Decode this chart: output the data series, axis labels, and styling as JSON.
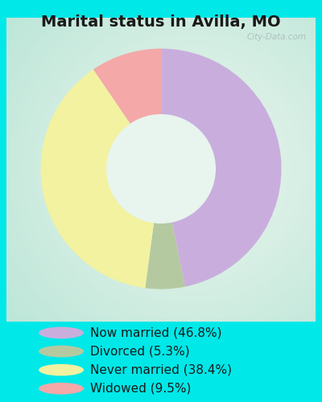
{
  "title": "Marital status in Avilla, MO",
  "slices": [
    46.8,
    5.3,
    38.4,
    9.5
  ],
  "colors": [
    "#c9aedd",
    "#b5c9a0",
    "#f2f2a0",
    "#f4a8a8"
  ],
  "labels": [
    "Now married (46.8%)",
    "Divorced (5.3%)",
    "Never married (38.4%)",
    "Widowed (9.5%)"
  ],
  "bg_outer": "#00e8e8",
  "bg_inner_center": "#e8f5ee",
  "bg_inner_edge": "#c8e8d8",
  "title_color": "#1a1a1a",
  "title_fontsize": 14,
  "watermark": "City-Data.com",
  "legend_fontsize": 11,
  "start_angle": 90,
  "donut_width": 0.55
}
